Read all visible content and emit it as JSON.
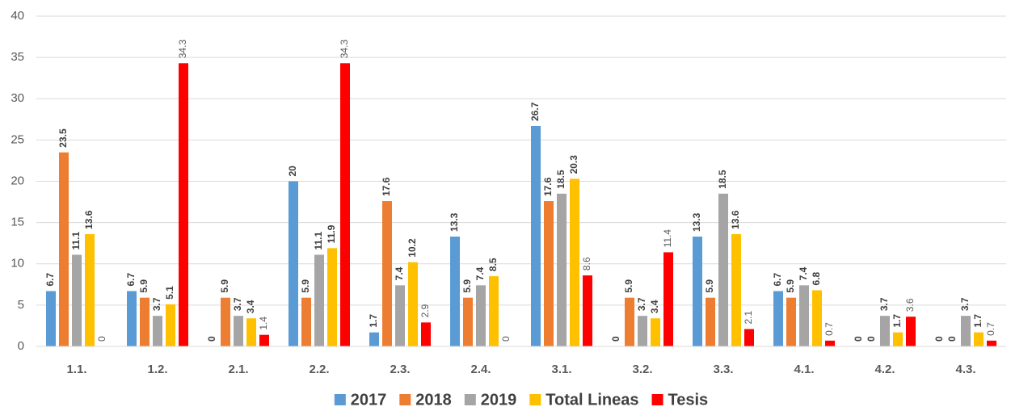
{
  "chart_data": {
    "type": "bar",
    "categories": [
      "1.1.",
      "1.2.",
      "2.1.",
      "2.2.",
      "2.3.",
      "2.4.",
      "3.1.",
      "3.2.",
      "3.3.",
      "4.1.",
      "4.2.",
      "4.3."
    ],
    "series": [
      {
        "name": "2017",
        "color": "#5b9bd5",
        "values": [
          6.7,
          6.7,
          0,
          20,
          1.7,
          13.3,
          26.7,
          0,
          13.3,
          6.7,
          0,
          0
        ]
      },
      {
        "name": "2018",
        "color": "#ed7d31",
        "values": [
          23.5,
          5.9,
          5.9,
          5.9,
          17.6,
          5.9,
          17.6,
          5.9,
          5.9,
          5.9,
          0,
          0
        ]
      },
      {
        "name": "2019",
        "color": "#a5a5a5",
        "values": [
          11.1,
          3.7,
          3.7,
          11.1,
          7.4,
          7.4,
          18.5,
          3.7,
          18.5,
          7.4,
          3.7,
          3.7
        ]
      },
      {
        "name": "Total Lineas",
        "color": "#ffc000",
        "values": [
          13.6,
          5.1,
          3.4,
          11.9,
          10.2,
          8.5,
          20.3,
          3.4,
          13.6,
          6.8,
          1.7,
          1.7
        ]
      },
      {
        "name": "Tesis",
        "color": "#ff0000",
        "values": [
          0,
          34.3,
          1.4,
          34.3,
          2.9,
          0,
          8.6,
          11.4,
          2.1,
          0.7,
          3.6,
          0.7
        ]
      }
    ],
    "ylim": [
      0,
      40
    ],
    "yticks": [
      0,
      5,
      10,
      15,
      20,
      25,
      30,
      35,
      40
    ],
    "grid": true,
    "legend": "bottom"
  }
}
